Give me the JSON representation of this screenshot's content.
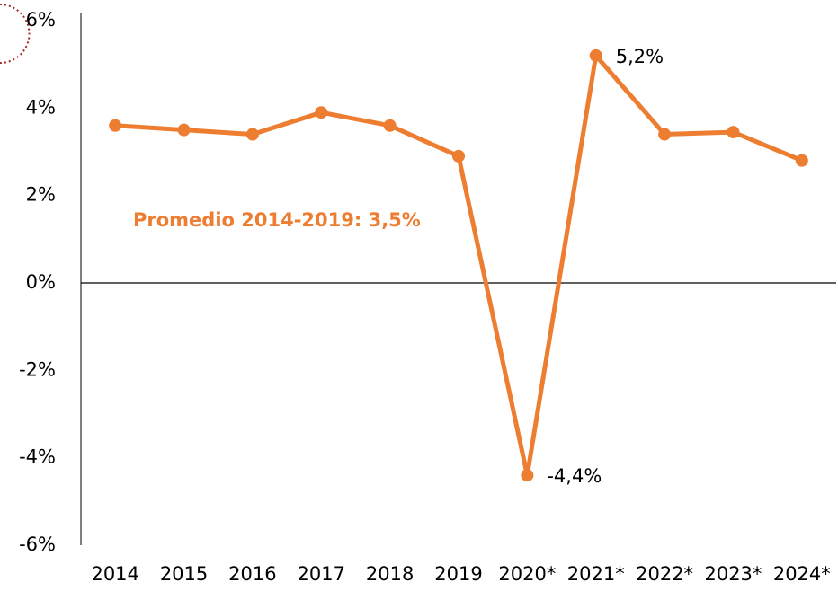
{
  "chart_data": {
    "type": "line",
    "categories": [
      "2014",
      "2015",
      "2016",
      "2017",
      "2018",
      "2019",
      "2020*",
      "2021*",
      "2022*",
      "2023*",
      "2024*"
    ],
    "series": [
      {
        "color": "#ed7d31",
        "values": [
          3.6,
          3.5,
          3.4,
          3.9,
          3.6,
          2.9,
          -4.4,
          5.2,
          3.4,
          3.45,
          2.8
        ],
        "value_labels": [
          null,
          null,
          null,
          null,
          null,
          null,
          "-4,4%",
          "5,2%",
          null,
          null,
          null
        ]
      }
    ],
    "ylim": [
      -6,
      6
    ],
    "yticks": [
      {
        "value": -6,
        "label": "-6%"
      },
      {
        "value": -4,
        "label": "-4%"
      },
      {
        "value": -2,
        "label": "-2%"
      },
      {
        "value": 0,
        "label": "0%"
      },
      {
        "value": 2,
        "label": "2%"
      },
      {
        "value": 4,
        "label": "4%"
      },
      {
        "value": 6,
        "label": "6%"
      }
    ],
    "annotations": [
      "Promedio 2014-2019: 3,5%"
    ]
  }
}
